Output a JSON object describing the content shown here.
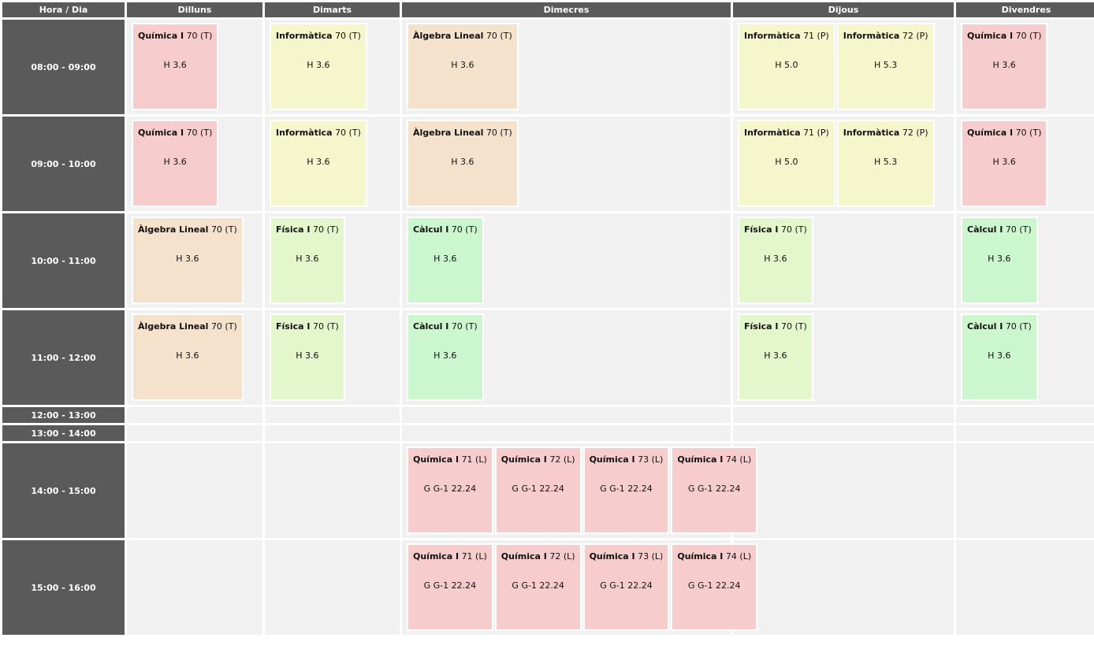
{
  "columns": [
    "Hora / Dia",
    "Dilluns",
    "Dimarts",
    "Dimecres",
    "Dijous",
    "Divendres"
  ],
  "colors": {
    "header": "#5a5a5a",
    "cell_bg": "#f1f1f1",
    "quimica": "#f6cccc",
    "informatica": "#f5f6cc",
    "algebra": "#f5e2cc",
    "fisica": "#e3f6cc",
    "calcul": "#ccf6cd"
  },
  "rows": [
    {
      "time": "08:00 - 09:00",
      "size": "tall",
      "days": [
        [
          {
            "subject": "Química I",
            "group": "70 (T)",
            "room": "H 3.6",
            "color": "#f6cccc"
          }
        ],
        [
          {
            "subject": "Informàtica",
            "group": "70 (T)",
            "room": "H 3.6",
            "color": "#f5f6cc"
          }
        ],
        [
          {
            "subject": "Àlgebra Lineal",
            "group": "70 (T)",
            "room": "H 3.6",
            "color": "#f5e2cc"
          }
        ],
        [
          {
            "subject": "Informàtica",
            "group": "71 (P)",
            "room": "H 5.0",
            "color": "#f5f6cc"
          },
          {
            "subject": "Informàtica",
            "group": "72 (P)",
            "room": "H 5.3",
            "color": "#f5f6cc"
          }
        ],
        [
          {
            "subject": "Química I",
            "group": "70 (T)",
            "room": "H 3.6",
            "color": "#f6cccc"
          }
        ]
      ]
    },
    {
      "time": "09:00 - 10:00",
      "size": "tall",
      "days": [
        [
          {
            "subject": "Química I",
            "group": "70 (T)",
            "room": "H 3.6",
            "color": "#f6cccc"
          }
        ],
        [
          {
            "subject": "Informàtica",
            "group": "70 (T)",
            "room": "H 3.6",
            "color": "#f5f6cc"
          }
        ],
        [
          {
            "subject": "Àlgebra Lineal",
            "group": "70 (T)",
            "room": "H 3.6",
            "color": "#f5e2cc"
          }
        ],
        [
          {
            "subject": "Informàtica",
            "group": "71 (P)",
            "room": "H 5.0",
            "color": "#f5f6cc"
          },
          {
            "subject": "Informàtica",
            "group": "72 (P)",
            "room": "H 5.3",
            "color": "#f5f6cc"
          }
        ],
        [
          {
            "subject": "Química I",
            "group": "70 (T)",
            "room": "H 3.6",
            "color": "#f6cccc"
          }
        ]
      ]
    },
    {
      "time": "10:00 - 11:00",
      "size": "tall",
      "days": [
        [
          {
            "subject": "Àlgebra Lineal",
            "group": "70 (T)",
            "room": "H 3.6",
            "color": "#f5e2cc"
          }
        ],
        [
          {
            "subject": "Física I",
            "group": "70 (T)",
            "room": "H 3.6",
            "color": "#e3f6cc"
          }
        ],
        [
          {
            "subject": "Càlcul I",
            "group": "70 (T)",
            "room": "H 3.6",
            "color": "#ccf6cd"
          }
        ],
        [
          {
            "subject": "Física I",
            "group": "70 (T)",
            "room": "H 3.6",
            "color": "#e3f6cc"
          }
        ],
        [
          {
            "subject": "Càlcul I",
            "group": "70 (T)",
            "room": "H 3.6",
            "color": "#ccf6cd"
          }
        ]
      ]
    },
    {
      "time": "11:00 - 12:00",
      "size": "tall",
      "days": [
        [
          {
            "subject": "Àlgebra Lineal",
            "group": "70 (T)",
            "room": "H 3.6",
            "color": "#f5e2cc"
          }
        ],
        [
          {
            "subject": "Física I",
            "group": "70 (T)",
            "room": "H 3.6",
            "color": "#e3f6cc"
          }
        ],
        [
          {
            "subject": "Càlcul I",
            "group": "70 (T)",
            "room": "H 3.6",
            "color": "#ccf6cd"
          }
        ],
        [
          {
            "subject": "Física I",
            "group": "70 (T)",
            "room": "H 3.6",
            "color": "#e3f6cc"
          }
        ],
        [
          {
            "subject": "Càlcul I",
            "group": "70 (T)",
            "room": "H 3.6",
            "color": "#ccf6cd"
          }
        ]
      ]
    },
    {
      "time": "12:00 - 13:00",
      "size": "short",
      "days": [
        [],
        [],
        [],
        [],
        []
      ]
    },
    {
      "time": "13:00 - 14:00",
      "size": "short",
      "days": [
        [],
        [],
        [],
        [],
        []
      ]
    },
    {
      "time": "14:00 - 15:00",
      "size": "tall",
      "days": [
        [],
        [],
        [
          {
            "subject": "Química I",
            "group": "71 (L)",
            "room": "G G-1 22.24",
            "color": "#f6cccc"
          },
          {
            "subject": "Química I",
            "group": "72 (L)",
            "room": "G G-1 22.24",
            "color": "#f6cccc"
          },
          {
            "subject": "Química I",
            "group": "73 (L)",
            "room": "G G-1 22.24",
            "color": "#f6cccc"
          },
          {
            "subject": "Química I",
            "group": "74 (L)",
            "room": "G G-1 22.24",
            "color": "#f6cccc"
          }
        ],
        [],
        []
      ]
    },
    {
      "time": "15:00 - 16:00",
      "size": "tall",
      "days": [
        [],
        [],
        [
          {
            "subject": "Química I",
            "group": "71 (L)",
            "room": "G G-1 22.24",
            "color": "#f6cccc"
          },
          {
            "subject": "Química I",
            "group": "72 (L)",
            "room": "G G-1 22.24",
            "color": "#f6cccc"
          },
          {
            "subject": "Química I",
            "group": "73 (L)",
            "room": "G G-1 22.24",
            "color": "#f6cccc"
          },
          {
            "subject": "Química I",
            "group": "74 (L)",
            "room": "G G-1 22.24",
            "color": "#f6cccc"
          }
        ],
        [],
        []
      ]
    }
  ]
}
